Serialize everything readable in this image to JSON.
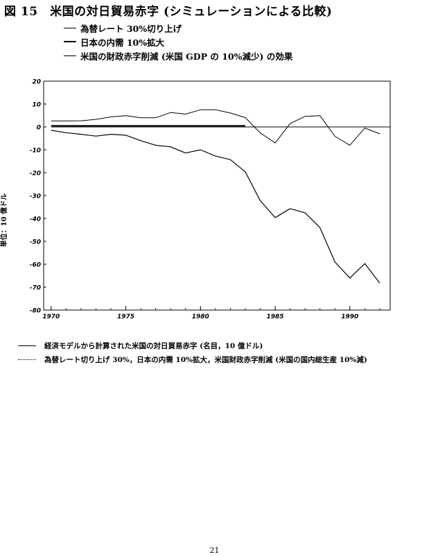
{
  "title": "図 15　米国の対日貿易赤字 (シミュレーションによる比較)",
  "legend_top": [
    {
      "label": "為替レート 30%切り上げ",
      "style": "thin"
    },
    {
      "label": "日本の内需 10%拡大",
      "style": "bold"
    },
    {
      "label": "米国の財政赤字削減 (米国 GDP の 10%減少) の効果",
      "style": "thin"
    }
  ],
  "legend_bottom": [
    {
      "label": "経済モデルから計算された米国の対日貿易赤字 (名目，10 億ドル)",
      "style": "solid"
    },
    {
      "label": "為替レート切り上げ 30%，日本の内需 10%拡大，米国財政赤字削減 (米国の国内総生産 10%減)",
      "style": "dotted"
    }
  ],
  "y_axis_label": "単位：10 億ドル",
  "page_number": "21",
  "chart_data": {
    "type": "line",
    "title": "図 15　米国の対日貿易赤字 (シミュレーションによる比較)",
    "xlabel": "",
    "ylabel": "単位：10 億ドル",
    "xlim": [
      1969.5,
      1992.7
    ],
    "ylim": [
      -80,
      20
    ],
    "x_ticks": [
      1970,
      1975,
      1980,
      1985,
      1990
    ],
    "x_tick_labels": [
      "1970",
      "1975",
      "1980",
      "1985",
      "1990"
    ],
    "y_ticks": [
      20,
      10,
      0,
      -10,
      -20,
      -30,
      -40,
      -50,
      -60,
      -70,
      -80
    ],
    "y_tick_labels": [
      "20",
      "10",
      "0",
      "-10",
      "-20",
      "-30",
      "-40",
      "-50",
      "-60",
      "-70",
      "-80"
    ],
    "zero_line": {
      "y": 0,
      "x_range": [
        1970,
        1992.7
      ]
    },
    "series": [
      {
        "style": "solid",
        "x": [
          1970,
          1971,
          1972,
          1973,
          1974,
          1975,
          1976,
          1977,
          1978,
          1979,
          1980,
          1981,
          1982,
          1983,
          1984,
          1985,
          1986,
          1987,
          1988,
          1989,
          1990,
          1991,
          1992
        ],
        "y": [
          -1.5,
          -2.5,
          -3.2,
          -4.0,
          -3.2,
          -3.6,
          -6.0,
          -8.0,
          -8.7,
          -11.4,
          -10.0,
          -12.7,
          -14.3,
          -19.6,
          -32.2,
          -39.6,
          -35.7,
          -37.5,
          -44.0,
          -59.0,
          -66.0,
          -59.7,
          -68.2
        ]
      },
      {
        "style": "upper",
        "x": [
          1970,
          1971,
          1972,
          1973,
          1974,
          1975,
          1976,
          1977,
          1978,
          1979,
          1980,
          1981,
          1982,
          1983,
          1984,
          1985,
          1986,
          1987,
          1988,
          1989,
          1990,
          1991,
          1992
        ],
        "y": [
          2.6,
          2.6,
          2.7,
          3.3,
          4.4,
          4.9,
          4.0,
          4.0,
          6.3,
          5.6,
          7.5,
          7.5,
          6.1,
          4.1,
          -2.6,
          -7.0,
          1.5,
          4.6,
          4.9,
          -4.1,
          -8.0,
          -0.5,
          -3.0
        ]
      },
      {
        "style": "thick-flat",
        "x": [
          1970,
          1983
        ],
        "y": [
          0.5,
          0.5
        ]
      }
    ]
  }
}
